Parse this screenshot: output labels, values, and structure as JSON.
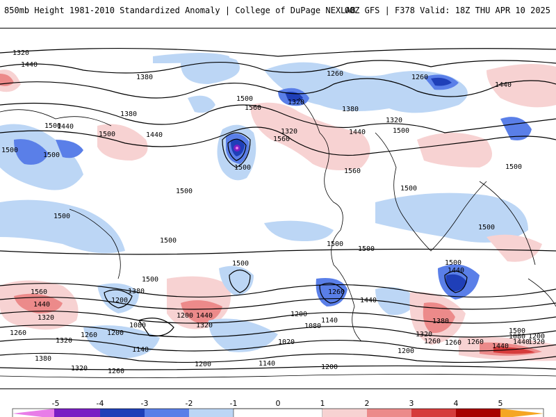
{
  "header": {
    "title": "850mb Height 1981-2010 Standardized Anomaly | College of DuPage NEXLAB",
    "run_info": "00Z GFS | F378 Valid: 18Z THU APR 10 2025"
  },
  "colors": {
    "neg5": "#e87de8",
    "neg4": "#7a1fc4",
    "neg3": "#1f3fb8",
    "neg2": "#5a7fe8",
    "neg1": "#bcd6f5",
    "zero": "#ffffff",
    "pos1": "#f7d2d2",
    "pos2": "#ec8a8a",
    "pos3": "#d63b3b",
    "pos4": "#a80000",
    "pos5": "#f5a623"
  },
  "colorbar": {
    "ticks": [
      "-5",
      "-4",
      "-3",
      "-2",
      "-1",
      "0",
      "1",
      "2",
      "3",
      "4",
      "5"
    ]
  },
  "contour_labels": [
    "1320",
    "1440",
    "1380",
    "1500",
    "1260",
    "1440",
    "1260",
    "1380",
    "1320",
    "1500",
    "1440",
    "1500",
    "1500",
    "1560",
    "1440",
    "1320",
    "1380",
    "1500",
    "1320",
    "1440",
    "1500",
    "1560",
    "1560",
    "1500",
    "1500",
    "1500",
    "1500",
    "1500",
    "1500",
    "1500",
    "1500",
    "1500",
    "1500",
    "1380",
    "1260",
    "1440",
    "1560",
    "1200",
    "1440",
    "1320",
    "1260",
    "1320",
    "1080",
    "1260",
    "1200",
    "1140",
    "1320",
    "1380",
    "1200",
    "1320",
    "1260",
    "1140",
    "1200",
    "1020",
    "1140",
    "1200",
    "1080",
    "1200",
    "1260",
    "1380",
    "1320",
    "1260",
    "1200",
    "1440",
    "1500",
    "1440",
    "1080",
    "1200",
    "1320",
    "1440",
    "1260",
    "1440",
    "1500",
    "1500"
  ]
}
